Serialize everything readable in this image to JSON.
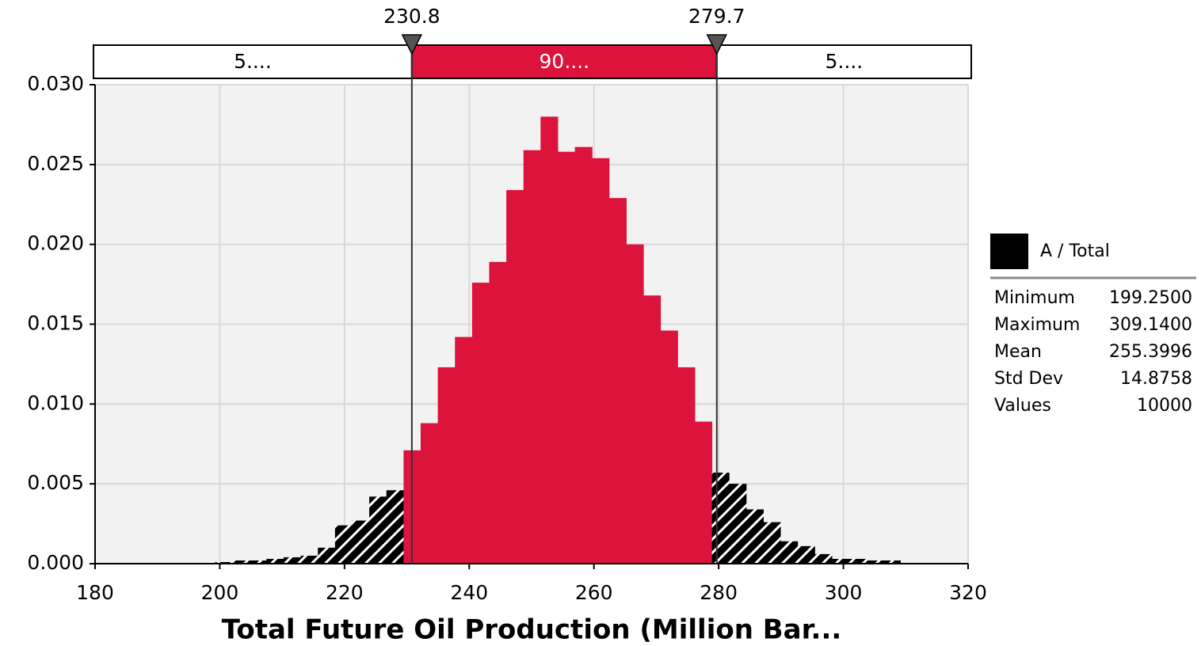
{
  "chart_data": {
    "type": "histogram",
    "x_label": "Total Future Oil Production (Million Bar...",
    "xlim": [
      180,
      320
    ],
    "xticks": [
      180,
      200,
      220,
      240,
      260,
      280,
      300,
      320
    ],
    "ylim": [
      0,
      0.03
    ],
    "yticks": [
      {
        "value": 0,
        "label": "0.000"
      },
      {
        "value": 0.005,
        "label": "0.005"
      },
      {
        "value": 0.01,
        "label": "0.010"
      },
      {
        "value": 0.015,
        "label": "0.015"
      },
      {
        "value": 0.02,
        "label": "0.020"
      },
      {
        "value": 0.025,
        "label": "0.025"
      },
      {
        "value": 0.03,
        "label": "0.030"
      }
    ],
    "grid": true,
    "bins": [
      199.25,
      202.0,
      204.74,
      207.49,
      210.24,
      212.99,
      215.73,
      218.48,
      221.23,
      223.97,
      226.72,
      229.47,
      232.21,
      234.96,
      237.71,
      240.46,
      243.2,
      245.95,
      248.7,
      251.44,
      254.19,
      256.94,
      259.69,
      262.43,
      265.18,
      267.93,
      270.67,
      273.42,
      276.17,
      278.92,
      281.66,
      284.41,
      287.16,
      289.9,
      292.65,
      295.4,
      298.15,
      300.89,
      303.64,
      306.39,
      309.14
    ],
    "series": [
      {
        "name": "A / Total",
        "color": "#000000",
        "highlight_color": "#dc143c",
        "values": [
          0.0001,
          0.0002,
          0.0002,
          0.0003,
          0.0004,
          0.0005,
          0.001,
          0.0024,
          0.0027,
          0.0042,
          0.0046,
          0.0071,
          0.0088,
          0.0123,
          0.0142,
          0.0176,
          0.0189,
          0.0234,
          0.0259,
          0.028,
          0.0258,
          0.0261,
          0.0254,
          0.0229,
          0.02,
          0.0168,
          0.0146,
          0.0123,
          0.0089,
          0.0057,
          0.005,
          0.0034,
          0.0026,
          0.0014,
          0.0011,
          0.0006,
          0.0003,
          0.0003,
          0.0002,
          0.0002
        ]
      }
    ],
    "delimiters": [
      230.8,
      279.7
    ],
    "region_labels": [
      "5....",
      "90....",
      "5...."
    ],
    "statistics": [
      [
        "Minimum",
        "199.2500"
      ],
      [
        "Maximum",
        "309.1400"
      ],
      [
        "Mean",
        "255.3996"
      ],
      [
        "Std Dev",
        "14.8758"
      ],
      [
        "Values",
        "10000"
      ]
    ]
  }
}
